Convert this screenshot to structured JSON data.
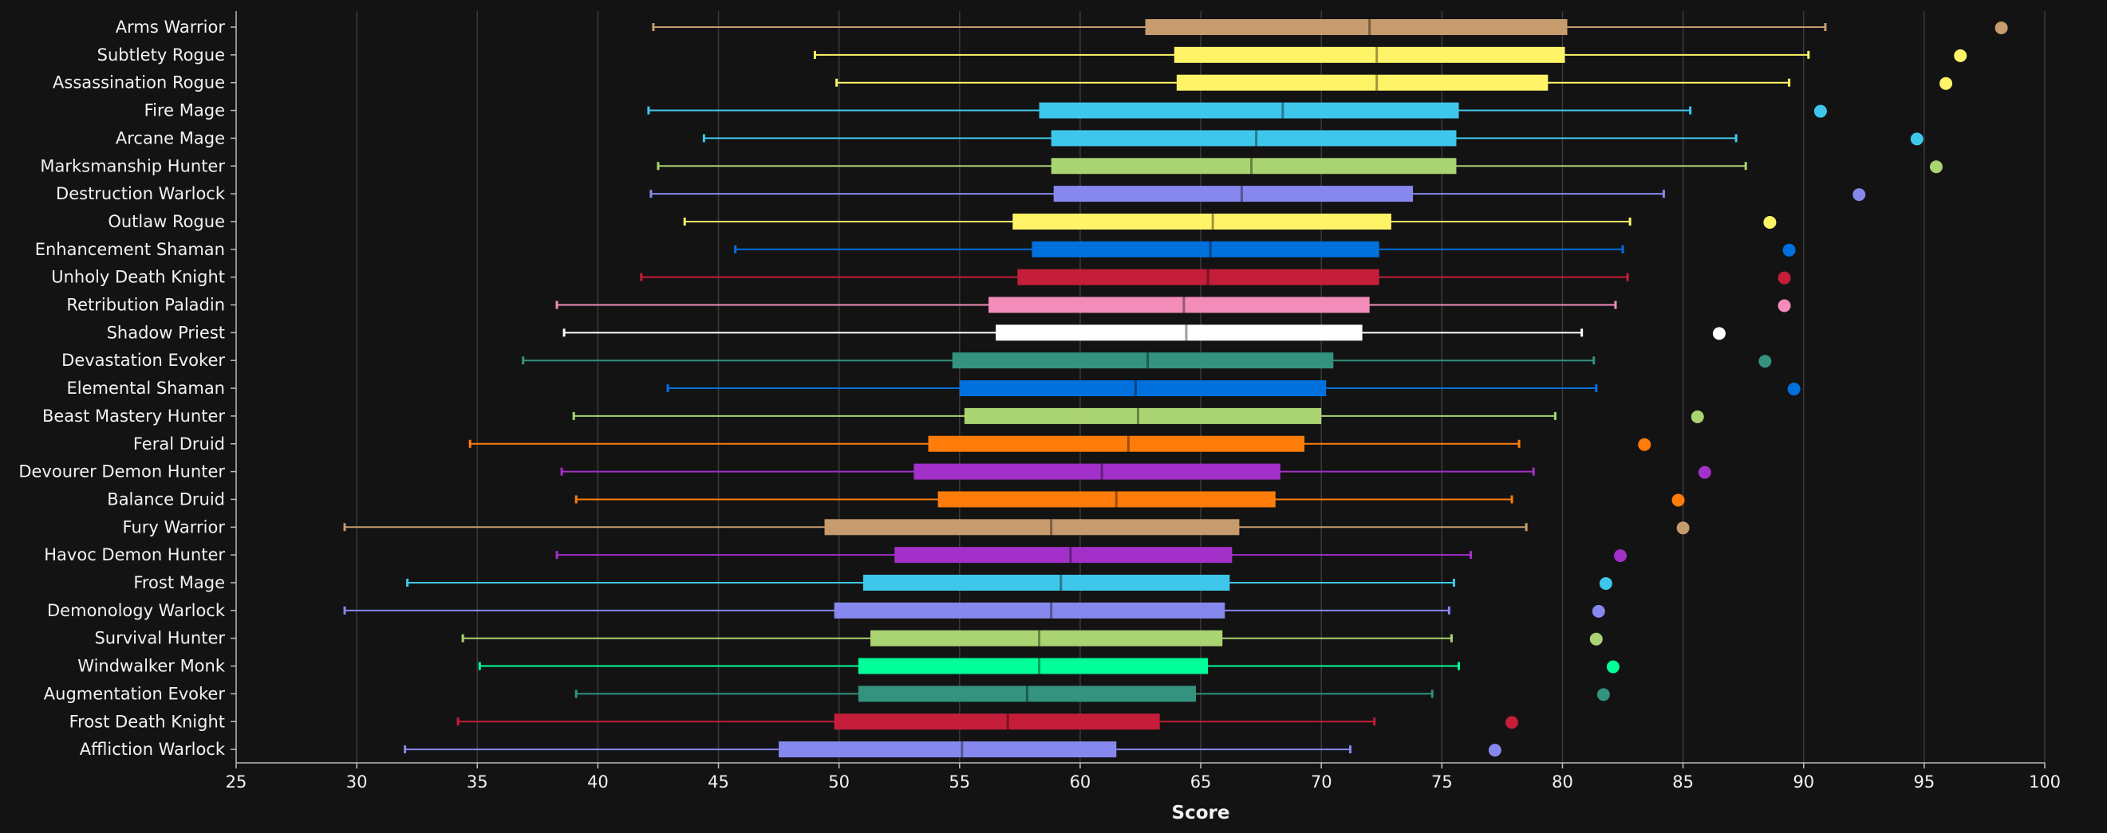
{
  "chart_data": {
    "type": "box",
    "orientation": "horizontal",
    "xlabel": "Score",
    "xlim": [
      25,
      100
    ],
    "xticks": [
      25,
      30,
      35,
      40,
      45,
      50,
      55,
      60,
      65,
      70,
      75,
      80,
      85,
      90,
      95,
      100
    ],
    "grid": true,
    "categories": [
      {
        "name": "Arms Warrior",
        "color": "#c69b6d",
        "whisker_low": 42.3,
        "q1": 62.7,
        "median": 72.0,
        "q3": 80.2,
        "whisker_high": 90.9,
        "max": 98.2
      },
      {
        "name": "Subtlety Rogue",
        "color": "#fff468",
        "whisker_low": 49.0,
        "q1": 63.9,
        "median": 72.3,
        "q3": 80.1,
        "whisker_high": 90.2,
        "max": 96.5
      },
      {
        "name": "Assassination Rogue",
        "color": "#fff468",
        "whisker_low": 49.9,
        "q1": 64.0,
        "median": 72.3,
        "q3": 79.4,
        "whisker_high": 89.4,
        "max": 95.9
      },
      {
        "name": "Fire Mage",
        "color": "#3fc7eb",
        "whisker_low": 42.1,
        "q1": 58.3,
        "median": 68.4,
        "q3": 75.7,
        "whisker_high": 85.3,
        "max": 90.7
      },
      {
        "name": "Arcane Mage",
        "color": "#3fc7eb",
        "whisker_low": 44.4,
        "q1": 58.8,
        "median": 67.3,
        "q3": 75.6,
        "whisker_high": 87.2,
        "max": 94.7
      },
      {
        "name": "Marksmanship Hunter",
        "color": "#aad372",
        "whisker_low": 42.5,
        "q1": 58.8,
        "median": 67.1,
        "q3": 75.6,
        "whisker_high": 87.6,
        "max": 95.5
      },
      {
        "name": "Destruction Warlock",
        "color": "#8788ee",
        "whisker_low": 42.2,
        "q1": 58.9,
        "median": 66.7,
        "q3": 73.8,
        "whisker_high": 84.2,
        "max": 92.3
      },
      {
        "name": "Outlaw Rogue",
        "color": "#fff468",
        "whisker_low": 43.6,
        "q1": 57.2,
        "median": 65.5,
        "q3": 72.9,
        "whisker_high": 82.8,
        "max": 88.6
      },
      {
        "name": "Enhancement Shaman",
        "color": "#0070dd",
        "whisker_low": 45.7,
        "q1": 58.0,
        "median": 65.4,
        "q3": 72.4,
        "whisker_high": 82.5,
        "max": 89.4
      },
      {
        "name": "Unholy Death Knight",
        "color": "#c41e3a",
        "whisker_low": 41.8,
        "q1": 57.4,
        "median": 65.3,
        "q3": 72.4,
        "whisker_high": 82.7,
        "max": 89.2
      },
      {
        "name": "Retribution Paladin",
        "color": "#f48cba",
        "whisker_low": 38.3,
        "q1": 56.2,
        "median": 64.3,
        "q3": 72.0,
        "whisker_high": 82.2,
        "max": 89.2
      },
      {
        "name": "Shadow Priest",
        "color": "#ffffff",
        "whisker_low": 38.6,
        "q1": 56.5,
        "median": 64.4,
        "q3": 71.7,
        "whisker_high": 80.8,
        "max": 86.5
      },
      {
        "name": "Devastation Evoker",
        "color": "#33937f",
        "whisker_low": 36.9,
        "q1": 54.7,
        "median": 62.8,
        "q3": 70.5,
        "whisker_high": 81.3,
        "max": 88.4
      },
      {
        "name": "Elemental Shaman",
        "color": "#0070dd",
        "whisker_low": 42.9,
        "q1": 55.0,
        "median": 62.3,
        "q3": 70.2,
        "whisker_high": 81.4,
        "max": 89.6
      },
      {
        "name": "Beast Mastery Hunter",
        "color": "#aad372",
        "whisker_low": 39.0,
        "q1": 55.2,
        "median": 62.4,
        "q3": 70.0,
        "whisker_high": 79.7,
        "max": 85.6
      },
      {
        "name": "Feral Druid",
        "color": "#ff7c0a",
        "whisker_low": 34.7,
        "q1": 53.7,
        "median": 62.0,
        "q3": 69.3,
        "whisker_high": 78.2,
        "max": 83.4
      },
      {
        "name": "Devourer Demon Hunter",
        "color": "#a330c9",
        "whisker_low": 38.5,
        "q1": 53.1,
        "median": 60.9,
        "q3": 68.3,
        "whisker_high": 78.8,
        "max": 85.9
      },
      {
        "name": "Balance Druid",
        "color": "#ff7c0a",
        "whisker_low": 39.1,
        "q1": 54.1,
        "median": 61.5,
        "q3": 68.1,
        "whisker_high": 77.9,
        "max": 84.8
      },
      {
        "name": "Fury Warrior",
        "color": "#c69b6d",
        "whisker_low": 29.5,
        "q1": 49.4,
        "median": 58.8,
        "q3": 66.6,
        "whisker_high": 78.5,
        "max": 85.0
      },
      {
        "name": "Havoc Demon Hunter",
        "color": "#a330c9",
        "whisker_low": 38.3,
        "q1": 52.3,
        "median": 59.6,
        "q3": 66.3,
        "whisker_high": 76.2,
        "max": 82.4
      },
      {
        "name": "Frost Mage",
        "color": "#3fc7eb",
        "whisker_low": 32.1,
        "q1": 51.0,
        "median": 59.2,
        "q3": 66.2,
        "whisker_high": 75.5,
        "max": 81.8
      },
      {
        "name": "Demonology Warlock",
        "color": "#8788ee",
        "whisker_low": 29.5,
        "q1": 49.8,
        "median": 58.8,
        "q3": 66.0,
        "whisker_high": 75.3,
        "max": 81.5
      },
      {
        "name": "Survival Hunter",
        "color": "#aad372",
        "whisker_low": 34.4,
        "q1": 51.3,
        "median": 58.3,
        "q3": 65.9,
        "whisker_high": 75.4,
        "max": 81.4
      },
      {
        "name": "Windwalker Monk",
        "color": "#00ff98",
        "whisker_low": 35.1,
        "q1": 50.8,
        "median": 58.3,
        "q3": 65.3,
        "whisker_high": 75.7,
        "max": 82.1
      },
      {
        "name": "Augmentation Evoker",
        "color": "#33937f",
        "whisker_low": 39.1,
        "q1": 50.8,
        "median": 57.8,
        "q3": 64.8,
        "whisker_high": 74.6,
        "max": 81.7
      },
      {
        "name": "Frost Death Knight",
        "color": "#c41e3a",
        "whisker_low": 34.2,
        "q1": 49.8,
        "median": 57.0,
        "q3": 63.3,
        "whisker_high": 72.2,
        "max": 77.9
      },
      {
        "name": "Affliction Warlock",
        "color": "#8788ee",
        "whisker_low": 32.0,
        "q1": 47.5,
        "median": 55.1,
        "q3": 61.5,
        "whisker_high": 71.2,
        "max": 77.2
      }
    ]
  }
}
